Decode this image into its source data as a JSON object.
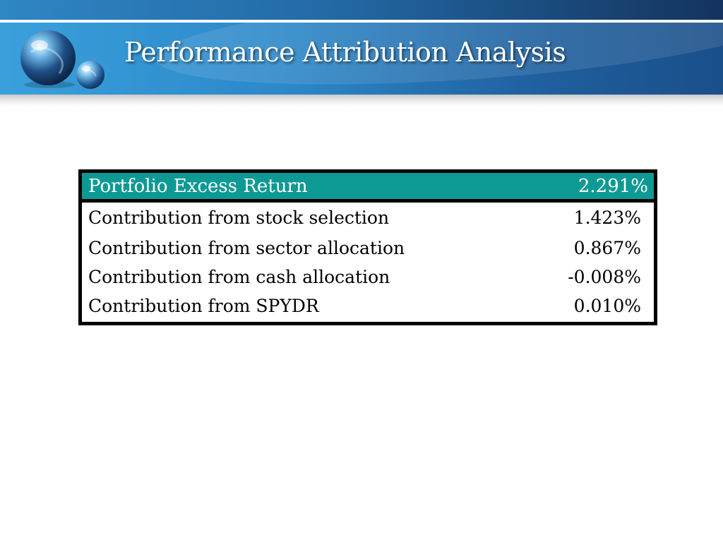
{
  "slide": {
    "title": "Performance Attribution Analysis"
  },
  "colors": {
    "banner_light": "#3aa0dc",
    "banner_dark": "#14335e",
    "table_header_bg": "#0d9a94",
    "table_header_text": "#ffffff",
    "table_border": "#000000"
  },
  "logo": {
    "icon": "globe-spheres-icon"
  },
  "table": {
    "header": {
      "label": "Portfolio Excess Return",
      "value": "2.291%"
    },
    "rows": [
      {
        "label": "Contribution from stock selection",
        "value": "1.423%"
      },
      {
        "label": "Contribution from sector allocation",
        "value": "0.867%"
      },
      {
        "label": "Contribution from cash allocation",
        "value": "-0.008%"
      },
      {
        "label": "Contribution from SPYDR",
        "value": "0.010%"
      }
    ]
  }
}
